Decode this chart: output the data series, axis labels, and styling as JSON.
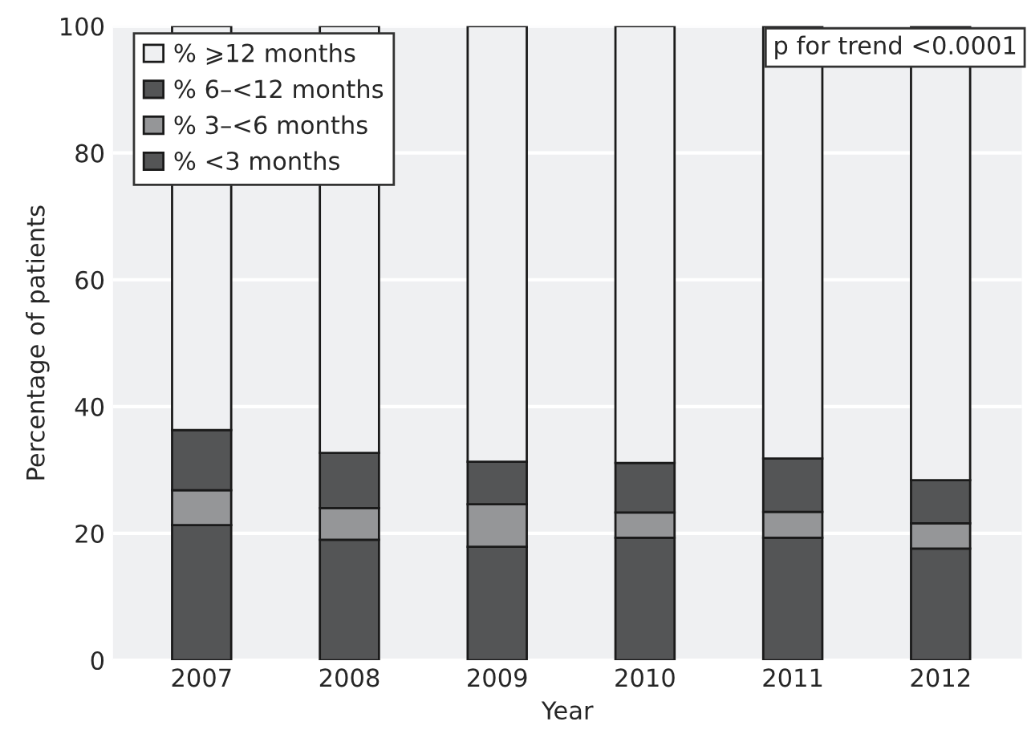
{
  "chart_data": {
    "type": "bar",
    "stacked": true,
    "xlabel": "Year",
    "ylabel": "Percentage of patients",
    "categories": [
      "2007",
      "2008",
      "2009",
      "2010",
      "2011",
      "2012"
    ],
    "series": [
      {
        "name": "% <3 months",
        "color": "#545556",
        "values": [
          21.3,
          19.0,
          17.9,
          19.3,
          19.3,
          17.6
        ]
      },
      {
        "name": "% 3–<6 months",
        "color": "#959698",
        "values": [
          5.5,
          5.0,
          6.7,
          4.0,
          4.1,
          4.0
        ]
      },
      {
        "name": "% 6–<12 months",
        "color": "#545556",
        "values": [
          9.5,
          8.7,
          6.7,
          7.8,
          8.4,
          6.8
        ]
      },
      {
        "name": "% ⩾12 months",
        "color": "#eff0f2",
        "values": [
          63.7,
          67.3,
          68.7,
          68.9,
          68.2,
          71.6
        ]
      }
    ],
    "ylim": [
      0,
      100
    ],
    "yticks": [
      0,
      20,
      40,
      60,
      80,
      100
    ],
    "grid": "y",
    "legend": "top left",
    "annotations": [
      "p for trend <0.0001"
    ]
  }
}
